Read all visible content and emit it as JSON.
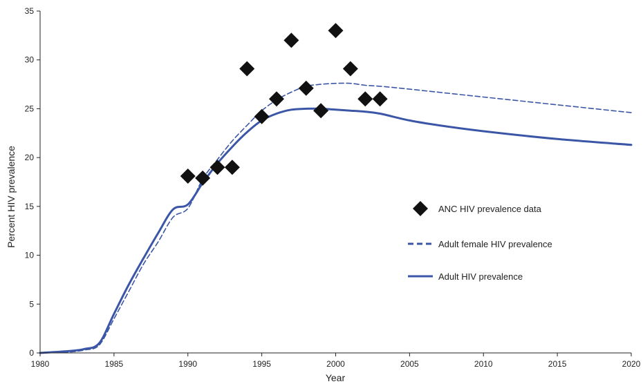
{
  "chart_data": {
    "type": "line",
    "title": "",
    "xlabel": "Year",
    "ylabel": "Percent HIV prevalence",
    "xlim": [
      1980,
      2020
    ],
    "ylim": [
      0,
      35
    ],
    "xticks": [
      1980,
      1985,
      1990,
      1995,
      2000,
      2005,
      2010,
      2015,
      2020
    ],
    "yticks": [
      0,
      5,
      10,
      15,
      20,
      25,
      30,
      35
    ],
    "grid": false,
    "legend_position": "right",
    "series": [
      {
        "name": "ANC HIV prevalence data",
        "kind": "scatter",
        "marker": "diamond",
        "color": "#111111",
        "points": [
          {
            "x": 1990,
            "y": 18.1
          },
          {
            "x": 1991,
            "y": 17.9
          },
          {
            "x": 1992,
            "y": 19.0
          },
          {
            "x": 1993,
            "y": 19.0
          },
          {
            "x": 1994,
            "y": 29.1
          },
          {
            "x": 1995,
            "y": 24.2
          },
          {
            "x": 1996,
            "y": 26.0
          },
          {
            "x": 1997,
            "y": 32.0
          },
          {
            "x": 1998,
            "y": 27.1
          },
          {
            "x": 1999,
            "y": 24.8
          },
          {
            "x": 2000,
            "y": 33.0
          },
          {
            "x": 2001,
            "y": 29.1
          },
          {
            "x": 2002,
            "y": 26.0
          },
          {
            "x": 2003,
            "y": 26.0
          }
        ]
      },
      {
        "name": "Adult female HIV prevalence",
        "kind": "line",
        "dash": true,
        "color": "#3b56a6",
        "points": [
          {
            "x": 1980,
            "y": 0.0
          },
          {
            "x": 1982,
            "y": 0.1
          },
          {
            "x": 1983,
            "y": 0.3
          },
          {
            "x": 1984,
            "y": 0.8
          },
          {
            "x": 1985,
            "y": 3.5
          },
          {
            "x": 1986,
            "y": 6.3
          },
          {
            "x": 1987,
            "y": 9.1
          },
          {
            "x": 1988,
            "y": 11.4
          },
          {
            "x": 1989,
            "y": 13.9
          },
          {
            "x": 1990,
            "y": 14.8
          },
          {
            "x": 1991,
            "y": 17.8
          },
          {
            "x": 1992,
            "y": 19.8
          },
          {
            "x": 1993,
            "y": 21.7
          },
          {
            "x": 1994,
            "y": 23.3
          },
          {
            "x": 1995,
            "y": 24.8
          },
          {
            "x": 1996,
            "y": 25.9
          },
          {
            "x": 1997,
            "y": 26.7
          },
          {
            "x": 1998,
            "y": 27.3
          },
          {
            "x": 1999,
            "y": 27.5
          },
          {
            "x": 2000,
            "y": 27.6
          },
          {
            "x": 2001,
            "y": 27.6
          },
          {
            "x": 2002,
            "y": 27.4
          },
          {
            "x": 2003,
            "y": 27.3
          },
          {
            "x": 2005,
            "y": 27.0
          },
          {
            "x": 2010,
            "y": 26.2
          },
          {
            "x": 2015,
            "y": 25.4
          },
          {
            "x": 2020,
            "y": 24.6
          }
        ]
      },
      {
        "name": "Adult HIV prevalence",
        "kind": "line",
        "dash": false,
        "color": "#3b56a6",
        "points": [
          {
            "x": 1980,
            "y": 0.0
          },
          {
            "x": 1982,
            "y": 0.2
          },
          {
            "x": 1983,
            "y": 0.4
          },
          {
            "x": 1984,
            "y": 1.0
          },
          {
            "x": 1985,
            "y": 4.0
          },
          {
            "x": 1986,
            "y": 7.0
          },
          {
            "x": 1987,
            "y": 9.7
          },
          {
            "x": 1988,
            "y": 12.3
          },
          {
            "x": 1989,
            "y": 14.7
          },
          {
            "x": 1990,
            "y": 15.2
          },
          {
            "x": 1991,
            "y": 17.4
          },
          {
            "x": 1992,
            "y": 19.4
          },
          {
            "x": 1993,
            "y": 21.1
          },
          {
            "x": 1994,
            "y": 22.6
          },
          {
            "x": 1995,
            "y": 23.8
          },
          {
            "x": 1996,
            "y": 24.5
          },
          {
            "x": 1997,
            "y": 24.9
          },
          {
            "x": 1998,
            "y": 25.0
          },
          {
            "x": 1999,
            "y": 25.0
          },
          {
            "x": 2000,
            "y": 24.9
          },
          {
            "x": 2001,
            "y": 24.8
          },
          {
            "x": 2002,
            "y": 24.7
          },
          {
            "x": 2003,
            "y": 24.5
          },
          {
            "x": 2005,
            "y": 23.8
          },
          {
            "x": 2007,
            "y": 23.3
          },
          {
            "x": 2010,
            "y": 22.7
          },
          {
            "x": 2015,
            "y": 21.9
          },
          {
            "x": 2020,
            "y": 21.3
          }
        ]
      }
    ]
  }
}
